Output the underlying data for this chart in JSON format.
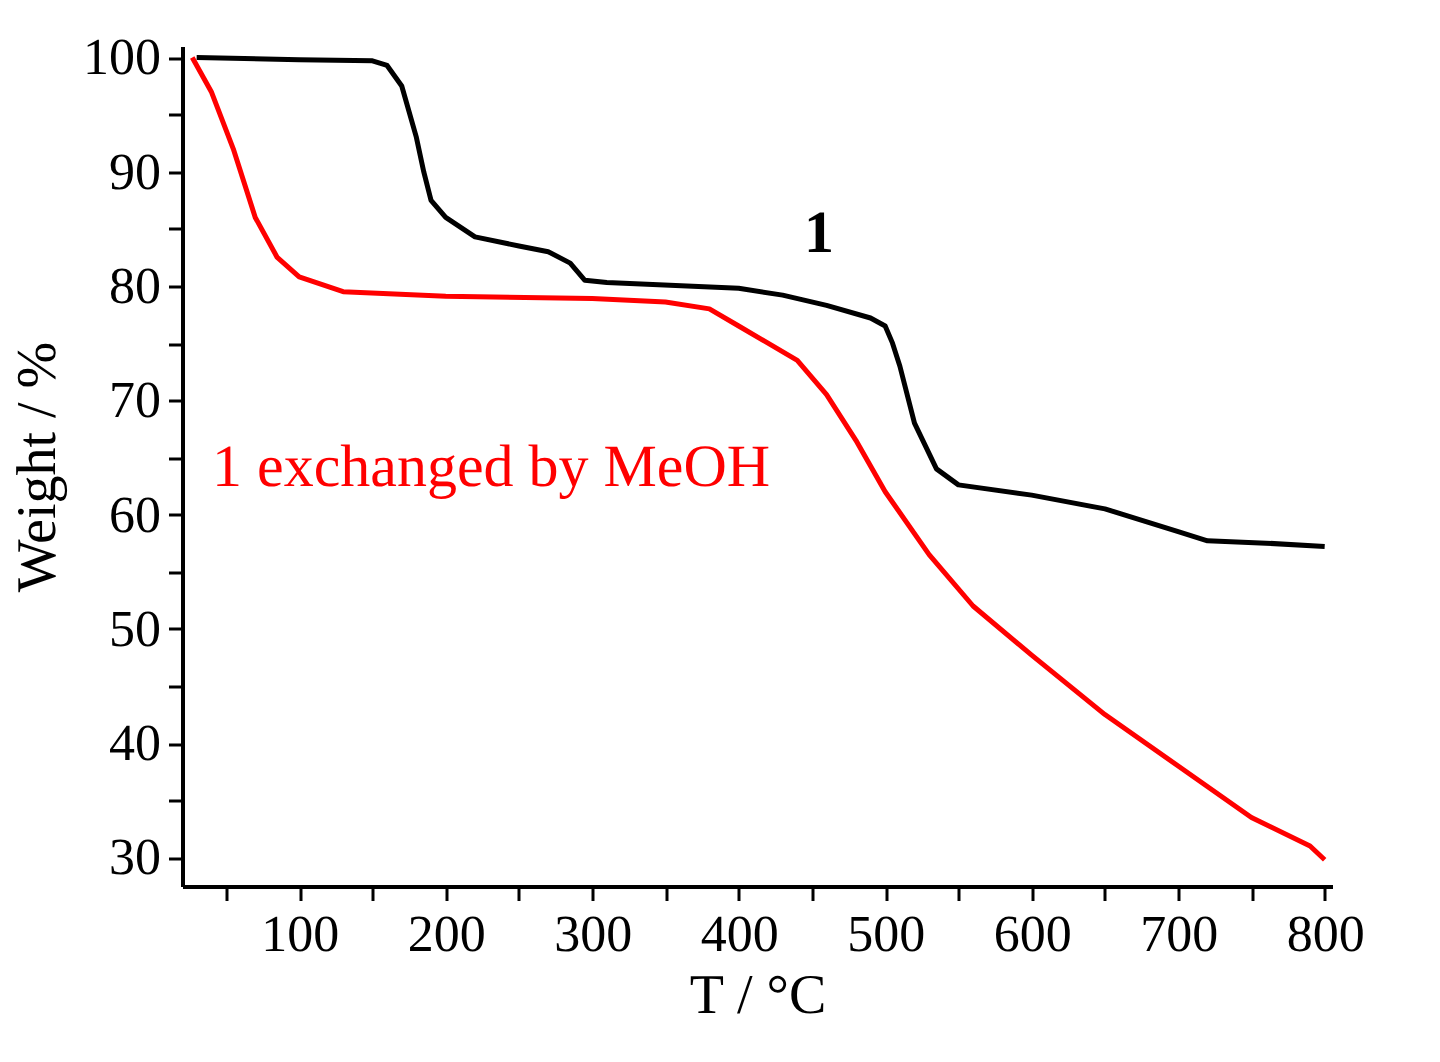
{
  "chart_data": {
    "type": "line",
    "xlabel": "T / °C",
    "ylabel": "Weight / %",
    "xlim": [
      20,
      805
    ],
    "ylim": [
      27.5,
      101
    ],
    "xticks": [
      {
        "value": 50,
        "label": null
      },
      100,
      {
        "value": 150,
        "label": null
      },
      200,
      {
        "value": 250,
        "label": null
      },
      300,
      {
        "value": 350,
        "label": null
      },
      400,
      {
        "value": 450,
        "label": null
      },
      500,
      {
        "value": 550,
        "label": null
      },
      600,
      {
        "value": 650,
        "label": null
      },
      700,
      {
        "value": 750,
        "label": null
      },
      800
    ],
    "yticks": [
      30,
      {
        "value": 35,
        "label": null
      },
      40,
      {
        "value": 45,
        "label": null
      },
      50,
      {
        "value": 55,
        "label": null
      },
      60,
      {
        "value": 65,
        "label": null
      },
      70,
      {
        "value": 75,
        "label": null
      },
      80,
      {
        "value": 85,
        "label": null
      },
      90,
      {
        "value": 95,
        "label": null
      },
      100
    ],
    "marker": "none",
    "line_style": "solid",
    "series": [
      {
        "name": "1",
        "color": "#000000",
        "x": [
          30,
          100,
          150,
          160,
          170,
          180,
          185,
          190,
          200,
          220,
          250,
          270,
          285,
          295,
          310,
          400,
          430,
          460,
          490,
          500,
          505,
          510,
          520,
          535,
          550,
          600,
          650,
          700,
          720,
          760,
          800
        ],
        "values": [
          100,
          99.8,
          99.7,
          99.3,
          97.5,
          93,
          90,
          87.5,
          86,
          84.3,
          83.5,
          83,
          82,
          80.5,
          80.3,
          79.8,
          79.2,
          78.3,
          77.2,
          76.5,
          75,
          73,
          68,
          64,
          62.6,
          61.7,
          60.5,
          58.5,
          57.7,
          57.5,
          57.2
        ]
      },
      {
        "name": "1 exchanged by MeOH",
        "color": "#ff0000",
        "x": [
          27,
          40,
          55,
          70,
          85,
          100,
          130,
          200,
          300,
          350,
          380,
          400,
          420,
          440,
          460,
          480,
          500,
          530,
          560,
          600,
          650,
          700,
          750,
          790,
          800
        ],
        "values": [
          100,
          97,
          92,
          86,
          82.5,
          80.8,
          79.5,
          79.1,
          78.9,
          78.6,
          78,
          76.5,
          75,
          73.5,
          70.5,
          66.5,
          62,
          56.5,
          52,
          47.7,
          42.5,
          38,
          33.5,
          31,
          29.8
        ]
      }
    ]
  }
}
